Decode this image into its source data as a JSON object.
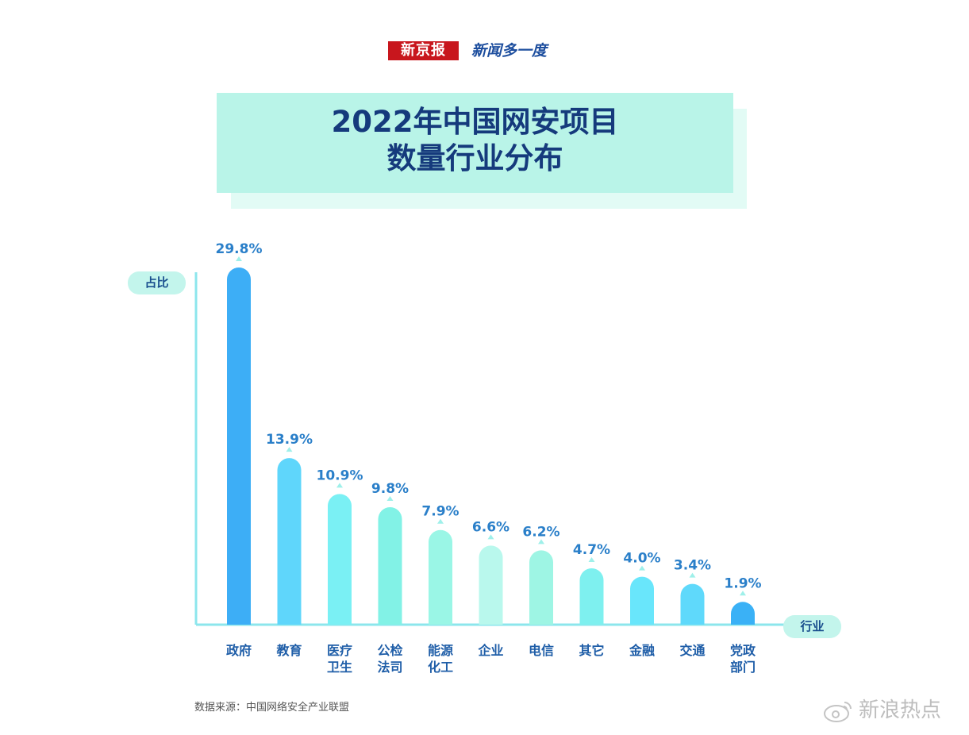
{
  "header": {
    "brand": "新京报",
    "subtitle": "新闻多一度"
  },
  "title": {
    "line1": "2022年中国网安项目",
    "line2": "数量行业分布"
  },
  "colors": {
    "title_text": "#153a7c",
    "value_label": "#2a7fc9",
    "category_label": "#1f5ea8",
    "axis": "#8ce6ec"
  },
  "chart_data": {
    "type": "bar",
    "title": "2022年中国网安项目数量行业分布",
    "xlabel": "行业",
    "ylabel": "占比",
    "unit": "%",
    "categories": [
      "政府",
      "教育",
      "医疗\n卫生",
      "公检\n法司",
      "能源\n化工",
      "企业",
      "电信",
      "其它",
      "金融",
      "交通",
      "党政\n部门"
    ],
    "values": [
      29.8,
      13.9,
      10.9,
      9.8,
      7.9,
      6.6,
      6.2,
      4.7,
      4.0,
      3.4,
      1.9
    ],
    "value_labels": [
      "29.8%",
      "13.9%",
      "10.9%",
      "9.8%",
      "7.9%",
      "6.6%",
      "6.2%",
      "4.7%",
      "4.0%",
      "3.4%",
      "1.9%"
    ],
    "bar_colors": [
      "#3daef6",
      "#5fd6fb",
      "#7af0f4",
      "#82f2e6",
      "#9af6e6",
      "#b9f8ed",
      "#9ef5e4",
      "#7ef0ef",
      "#69e6fb",
      "#5fd9fb",
      "#3ab1f6"
    ],
    "ylim": [
      0,
      30
    ]
  },
  "footer": {
    "source": "数据来源：中国网络安全产业联盟"
  },
  "watermark": {
    "text": "新浪热点"
  }
}
